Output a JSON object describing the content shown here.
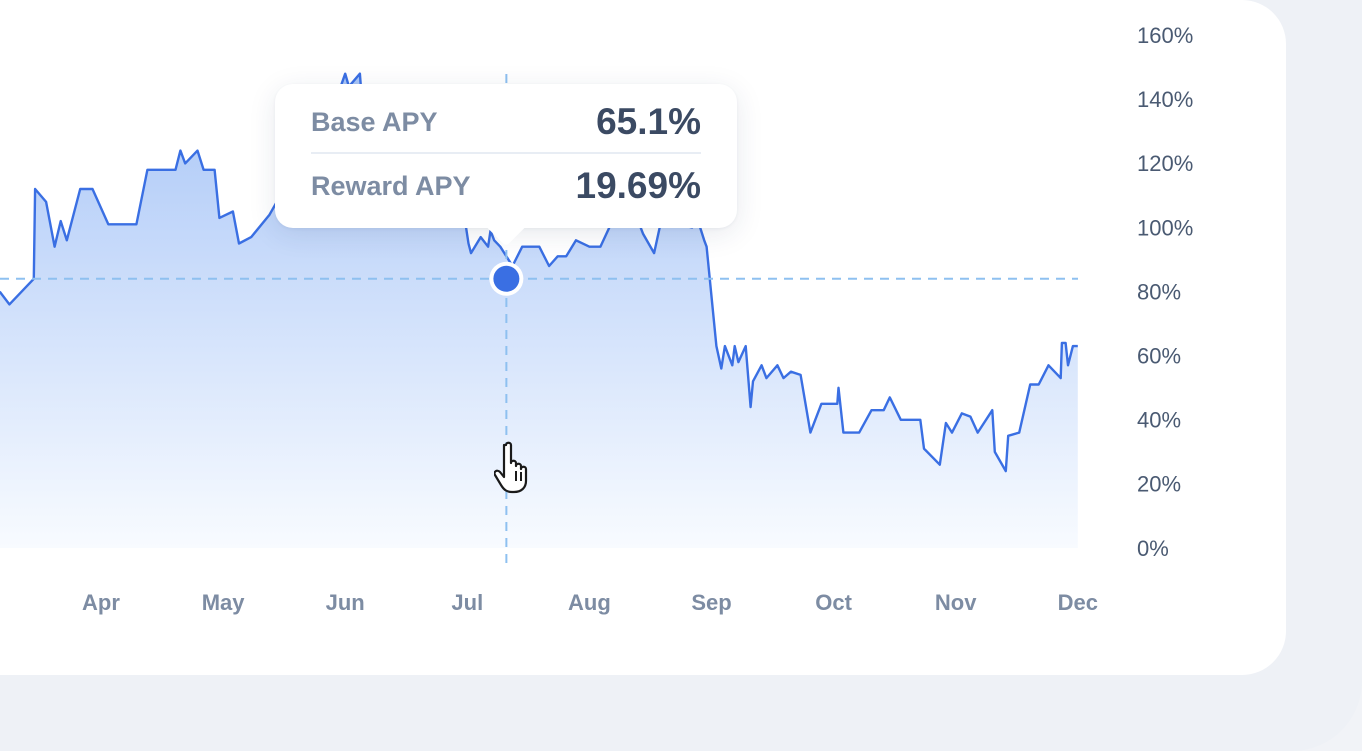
{
  "chart_data": {
    "type": "area",
    "y_ticks": [
      "160%",
      "140%",
      "120%",
      "100%",
      "80%",
      "60%",
      "40%",
      "20%",
      "0%"
    ],
    "ylim": [
      0,
      160
    ],
    "x_ticks": [
      "Apr",
      "May",
      "Jun",
      "Jul",
      "Aug",
      "Sep",
      "Oct",
      "Nov",
      "Dec"
    ],
    "x_tick_positions": [
      0,
      1,
      2,
      3,
      4,
      5,
      6,
      7,
      8
    ],
    "xlim": [
      -0.83,
      8.0
    ],
    "series": [
      {
        "x": [
          -0.83,
          -0.75,
          -0.55,
          -0.54,
          -0.45,
          -0.38,
          -0.33,
          -0.28,
          -0.17,
          -0.07,
          0.06,
          0.29,
          0.38,
          0.61,
          0.65,
          0.69,
          0.79,
          0.84,
          0.93,
          0.97,
          1.08,
          1.13,
          1.23,
          1.38,
          1.44,
          1.62,
          1.65,
          1.77,
          2.0,
          2.03,
          2.12,
          2.16,
          2.24,
          2.28,
          2.37,
          2.41,
          2.47,
          2.65,
          2.81,
          2.95,
          3.01,
          3.03,
          3.11,
          3.17,
          3.19,
          3.22,
          3.27,
          3.37,
          3.45,
          3.59,
          3.67,
          3.74,
          3.81,
          3.89,
          4.0,
          4.09,
          4.2,
          4.39,
          4.44,
          4.53,
          4.61,
          4.66,
          4.69,
          4.73,
          4.84,
          4.89,
          4.94,
          4.96,
          5.04,
          5.08,
          5.11,
          5.17,
          5.19,
          5.22,
          5.28,
          5.32,
          5.34,
          5.41,
          5.45,
          5.54,
          5.59,
          5.65,
          5.73,
          5.81,
          5.9,
          6.03,
          6.04,
          6.08,
          6.21,
          6.31,
          6.41,
          6.46,
          6.55,
          6.71,
          6.74,
          6.87,
          6.92,
          6.97,
          7.05,
          7.12,
          7.18,
          7.3,
          7.32,
          7.41,
          7.43,
          7.52,
          7.61,
          7.68,
          7.76,
          7.86,
          7.87,
          7.9,
          7.92,
          7.96,
          8.0
        ],
        "y": [
          80,
          76,
          84,
          112,
          108,
          94,
          102,
          96,
          112,
          112,
          101,
          101,
          118,
          118,
          124,
          120,
          124,
          118,
          118,
          103,
          105,
          95,
          97,
          104,
          108,
          108,
          119,
          123,
          148,
          144,
          148,
          128,
          121,
          124,
          121,
          121,
          112,
          107,
          110,
          110,
          95,
          92,
          97,
          94,
          99,
          96,
          94,
          88,
          94,
          94,
          88,
          91,
          91,
          96,
          94,
          94,
          103,
          103,
          98,
          92,
          106,
          114,
          107,
          101,
          100,
          102,
          96,
          94,
          63,
          56,
          63,
          57,
          63,
          58,
          63,
          44,
          52,
          57,
          53,
          57,
          53,
          55,
          54,
          36,
          45,
          45,
          50,
          36,
          36,
          43,
          43,
          47,
          40,
          40,
          31,
          26,
          39,
          36,
          42,
          41,
          36,
          43,
          30,
          24,
          35,
          36,
          51,
          51,
          57,
          53,
          64,
          64,
          57,
          63,
          63
        ]
      }
    ],
    "highlight": {
      "x": 3.32,
      "y": 84
    },
    "tooltip": {
      "rows": [
        {
          "label": "Base APY",
          "value": "65.1%"
        },
        {
          "label": "Reward APY",
          "value": "19.69%"
        }
      ]
    },
    "grid": false,
    "colors": {
      "line": "#3a6fe3",
      "fill_top": "#a9c6f7",
      "fill_bottom": "#f8fbff",
      "crosshair": "#8ec0f0",
      "point": "#3a6fe3"
    }
  }
}
